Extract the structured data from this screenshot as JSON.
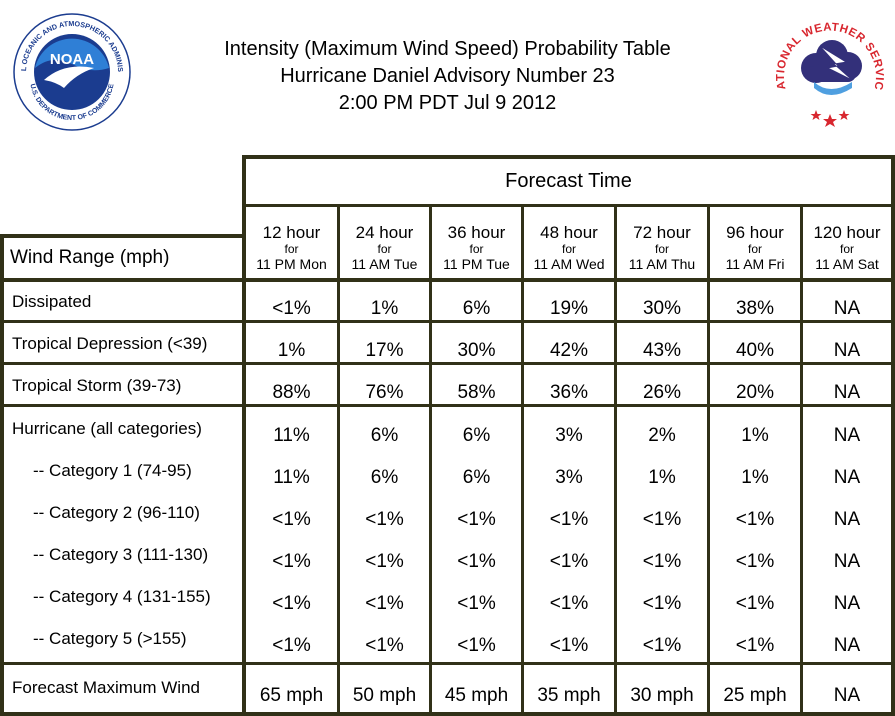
{
  "header": {
    "title_lines": [
      "Intensity (Maximum Wind Speed) Probability Table",
      "Hurricane Daniel Advisory Number 23",
      "2:00 PM PDT Jul 9 2012"
    ]
  },
  "logos": {
    "noaa": {
      "name": "noaa-logo",
      "ring_text": "NATIONAL OCEANIC AND ATMOSPHERIC ADMINISTRATION",
      "bottom_text": "U.S. DEPARTMENT OF COMMERCE",
      "center_text": "NOAA",
      "colors": {
        "ring": "#ffffff",
        "blue": "#1b3c8f",
        "sky": "#2f7fd6"
      }
    },
    "nws": {
      "name": "nws-logo",
      "ring_text": "NATIONAL WEATHER SERVICE",
      "colors": {
        "text": "#d8262e",
        "cloud": "#33307a",
        "stars": "#d8262e"
      }
    }
  },
  "table": {
    "forecast_time_label": "Forecast Time",
    "row_header_label": "Wind Range (mph)",
    "columns": [
      {
        "hours": "12 hour",
        "for": "for",
        "time": "11 PM Mon"
      },
      {
        "hours": "24 hour",
        "for": "for",
        "time": "11 AM Tue"
      },
      {
        "hours": "36 hour",
        "for": "for",
        "time": "11 PM Tue"
      },
      {
        "hours": "48 hour",
        "for": "for",
        "time": "11 AM Wed"
      },
      {
        "hours": "72 hour",
        "for": "for",
        "time": "11 AM Thu"
      },
      {
        "hours": "96 hour",
        "for": "for",
        "time": "11 AM Fri"
      },
      {
        "hours": "120 hour",
        "for": "for",
        "time": "11 AM Sat"
      }
    ],
    "rows": [
      {
        "label": "Dissipated",
        "values": [
          "<1%",
          "1%",
          "6%",
          "19%",
          "30%",
          "38%",
          "NA"
        ]
      },
      {
        "label": "Tropical Depression (<39)",
        "values": [
          "1%",
          "17%",
          "30%",
          "42%",
          "43%",
          "40%",
          "NA"
        ]
      },
      {
        "label": "Tropical Storm (39-73)",
        "values": [
          "88%",
          "76%",
          "58%",
          "36%",
          "26%",
          "20%",
          "NA"
        ]
      },
      {
        "label": "Hurricane (all categories)",
        "values": [
          "11%",
          "6%",
          "6%",
          "3%",
          "2%",
          "1%",
          "NA"
        ]
      },
      {
        "label": "-- Category 1 (74-95)",
        "values": [
          "11%",
          "6%",
          "6%",
          "3%",
          "1%",
          "1%",
          "NA"
        ]
      },
      {
        "label": "-- Category 2 (96-110)",
        "values": [
          "<1%",
          "<1%",
          "<1%",
          "<1%",
          "<1%",
          "<1%",
          "NA"
        ]
      },
      {
        "label": "-- Category 3 (111-130)",
        "values": [
          "<1%",
          "<1%",
          "<1%",
          "<1%",
          "<1%",
          "<1%",
          "NA"
        ]
      },
      {
        "label": "-- Category 4 (131-155)",
        "values": [
          "<1%",
          "<1%",
          "<1%",
          "<1%",
          "<1%",
          "<1%",
          "NA"
        ]
      },
      {
        "label": "-- Category 5 (>155)",
        "values": [
          "<1%",
          "<1%",
          "<1%",
          "<1%",
          "<1%",
          "<1%",
          "NA"
        ]
      },
      {
        "label": "Forecast Maximum Wind",
        "values": [
          "65 mph",
          "50 mph",
          "45 mph",
          "35 mph",
          "30 mph",
          "25 mph",
          "NA"
        ]
      }
    ],
    "colors": {
      "grid": "#313118",
      "background": "#ffffff",
      "text": "#000000"
    }
  }
}
